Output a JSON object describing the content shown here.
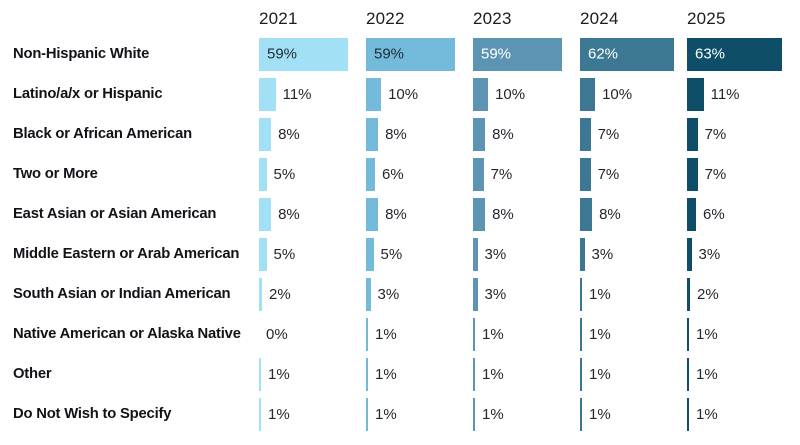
{
  "chart_data": {
    "type": "bar",
    "orientation": "horizontal",
    "unit": "%",
    "legend_position": "none",
    "grid": "off",
    "xmax_percent": 66,
    "columns": [
      "2021",
      "2022",
      "2023",
      "2024",
      "2025"
    ],
    "categories": [
      "Non-Hispanic White",
      "Latino/a/x or Hispanic",
      "Black or African American",
      "Two or More",
      "East Asian or Asian American",
      "Middle Eastern or Arab American",
      "South Asian or Indian American",
      "Native American or Alaska Native",
      "Other",
      "Do Not Wish to Specify"
    ],
    "series": [
      {
        "name": "2021",
        "color": "#a2e1f5",
        "inside_label_color": "#1e2a33",
        "values": [
          59,
          11,
          8,
          5,
          8,
          5,
          2,
          0,
          1,
          1
        ]
      },
      {
        "name": "2022",
        "color": "#73badb",
        "inside_label_color": "#1e2a33",
        "values": [
          59,
          10,
          8,
          6,
          8,
          5,
          3,
          1,
          1,
          1
        ]
      },
      {
        "name": "2023",
        "color": "#5d94b4",
        "inside_label_color": "#ffffff",
        "values": [
          59,
          10,
          8,
          7,
          8,
          3,
          3,
          1,
          1,
          1
        ]
      },
      {
        "name": "2024",
        "color": "#3c7894",
        "inside_label_color": "#ffffff",
        "values": [
          62,
          10,
          7,
          7,
          8,
          3,
          1,
          1,
          1,
          1
        ]
      },
      {
        "name": "2025",
        "color": "#0e4e68",
        "inside_label_color": "#ffffff",
        "values": [
          63,
          11,
          7,
          7,
          6,
          3,
          2,
          1,
          1,
          1
        ]
      }
    ],
    "text_color": "#121218",
    "value_label_color": "#26262e"
  }
}
